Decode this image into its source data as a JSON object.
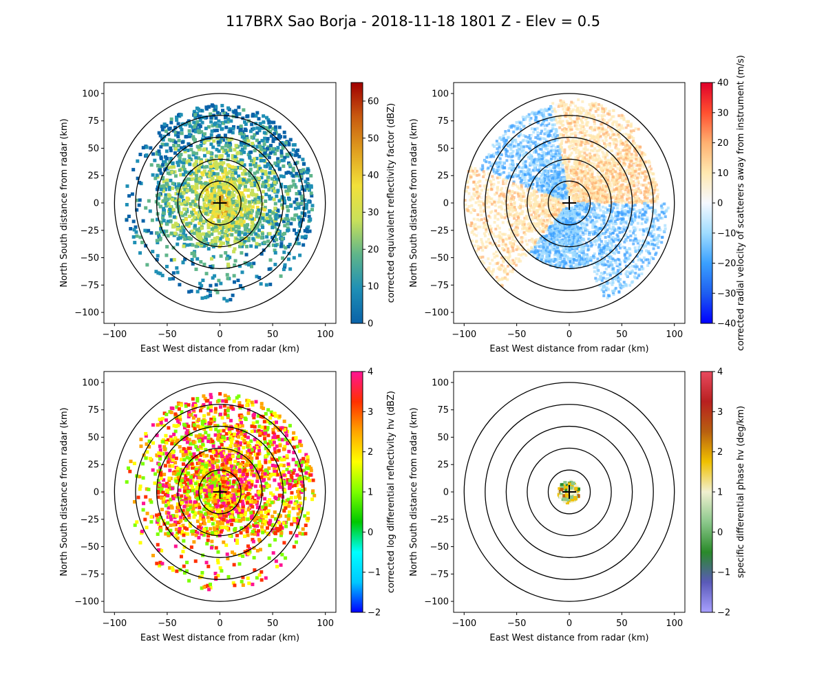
{
  "figure": {
    "title": "117BRX Sao Borja - 2018-11-18 1801 Z -  Elev = 0.5"
  },
  "chart_data": [
    {
      "type": "heatmap",
      "field": "reflectivity",
      "xlabel": "East West distance from radar (km)",
      "ylabel": "North South distance from radar (km)",
      "xlim": [
        -110,
        110
      ],
      "ylim": [
        -110,
        110
      ],
      "xticks": [
        -100,
        -50,
        0,
        50,
        100
      ],
      "yticks": [
        -100,
        -75,
        -50,
        -25,
        0,
        25,
        50,
        75,
        100
      ],
      "range_rings_km": [
        20,
        40,
        60,
        80,
        100
      ],
      "colorbar": {
        "label": "corrected equivalent reflectivity factor (dBZ)",
        "min": 0,
        "max": 65,
        "ticks": [
          0,
          10,
          20,
          30,
          40,
          50,
          60
        ],
        "colors": [
          "#0a62a8",
          "#1f8fb5",
          "#5fb58a",
          "#c9e05a",
          "#f2e03a",
          "#e0a020",
          "#c85a10",
          "#a00000"
        ]
      },
      "echo_coverage": "moderate"
    },
    {
      "type": "heatmap",
      "field": "velocity",
      "xlabel": "East West distance from radar (km)",
      "ylabel": "North South distance from radar (km)",
      "xlim": [
        -110,
        110
      ],
      "ylim": [
        -110,
        110
      ],
      "xticks": [
        -100,
        -50,
        0,
        50,
        100
      ],
      "yticks": [
        -100,
        -75,
        -50,
        -25,
        0,
        25,
        50,
        75,
        100
      ],
      "range_rings_km": [
        20,
        40,
        60,
        80,
        100
      ],
      "colorbar": {
        "label": "corrected radial velocity of scatterers away from instrument (m/s)",
        "min": -40,
        "max": 40,
        "ticks": [
          -40,
          -30,
          -20,
          -10,
          0,
          10,
          20,
          30,
          40
        ],
        "colors": [
          "#0000ff",
          "#1e5ef0",
          "#3aa0ff",
          "#9fdcff",
          "#f5f8ff",
          "#ffe8b0",
          "#ffb070",
          "#ff5030",
          "#e0002a"
        ]
      },
      "echo_coverage": "wide"
    },
    {
      "type": "heatmap",
      "field": "differential_reflectivity",
      "xlabel": "East West distance from radar (km)",
      "ylabel": "North South distance from radar (km)",
      "xlim": [
        -110,
        110
      ],
      "ylim": [
        -110,
        110
      ],
      "xticks": [
        -100,
        -50,
        0,
        50,
        100
      ],
      "yticks": [
        -100,
        -75,
        -50,
        -25,
        0,
        25,
        50,
        75,
        100
      ],
      "range_rings_km": [
        20,
        40,
        60,
        80,
        100
      ],
      "colorbar": {
        "label": "corrected log differential reflectivity hv (dBZ)",
        "min": -2,
        "max": 4,
        "ticks": [
          -2,
          -1,
          0,
          1,
          2,
          3,
          4
        ],
        "colors": [
          "#0000ff",
          "#00c8ff",
          "#00ffff",
          "#00c800",
          "#7cff00",
          "#ffff00",
          "#ffa500",
          "#ff3000",
          "#ff1493"
        ]
      },
      "echo_coverage": "moderate"
    },
    {
      "type": "heatmap",
      "field": "specific_differential_phase",
      "xlabel": "East West distance from radar (km)",
      "ylabel": "North South distance from radar (km)",
      "xlim": [
        -110,
        110
      ],
      "ylim": [
        -110,
        110
      ],
      "xticks": [
        -100,
        -50,
        0,
        50,
        100
      ],
      "yticks": [
        -100,
        -75,
        -50,
        -25,
        0,
        25,
        50,
        75,
        100
      ],
      "range_rings_km": [
        20,
        40,
        60,
        80,
        100
      ],
      "colorbar": {
        "label": "specific differential phase hv (deg/km)",
        "min": -2,
        "max": 4,
        "ticks": [
          -2,
          -1,
          0,
          1,
          2,
          3,
          4
        ],
        "colors": [
          "#a8a0ff",
          "#5a5ab8",
          "#2a8a2a",
          "#8cc88c",
          "#f0f0d0",
          "#f0c000",
          "#b86010",
          "#b82020",
          "#e84a5f"
        ]
      },
      "echo_coverage": "small"
    }
  ]
}
